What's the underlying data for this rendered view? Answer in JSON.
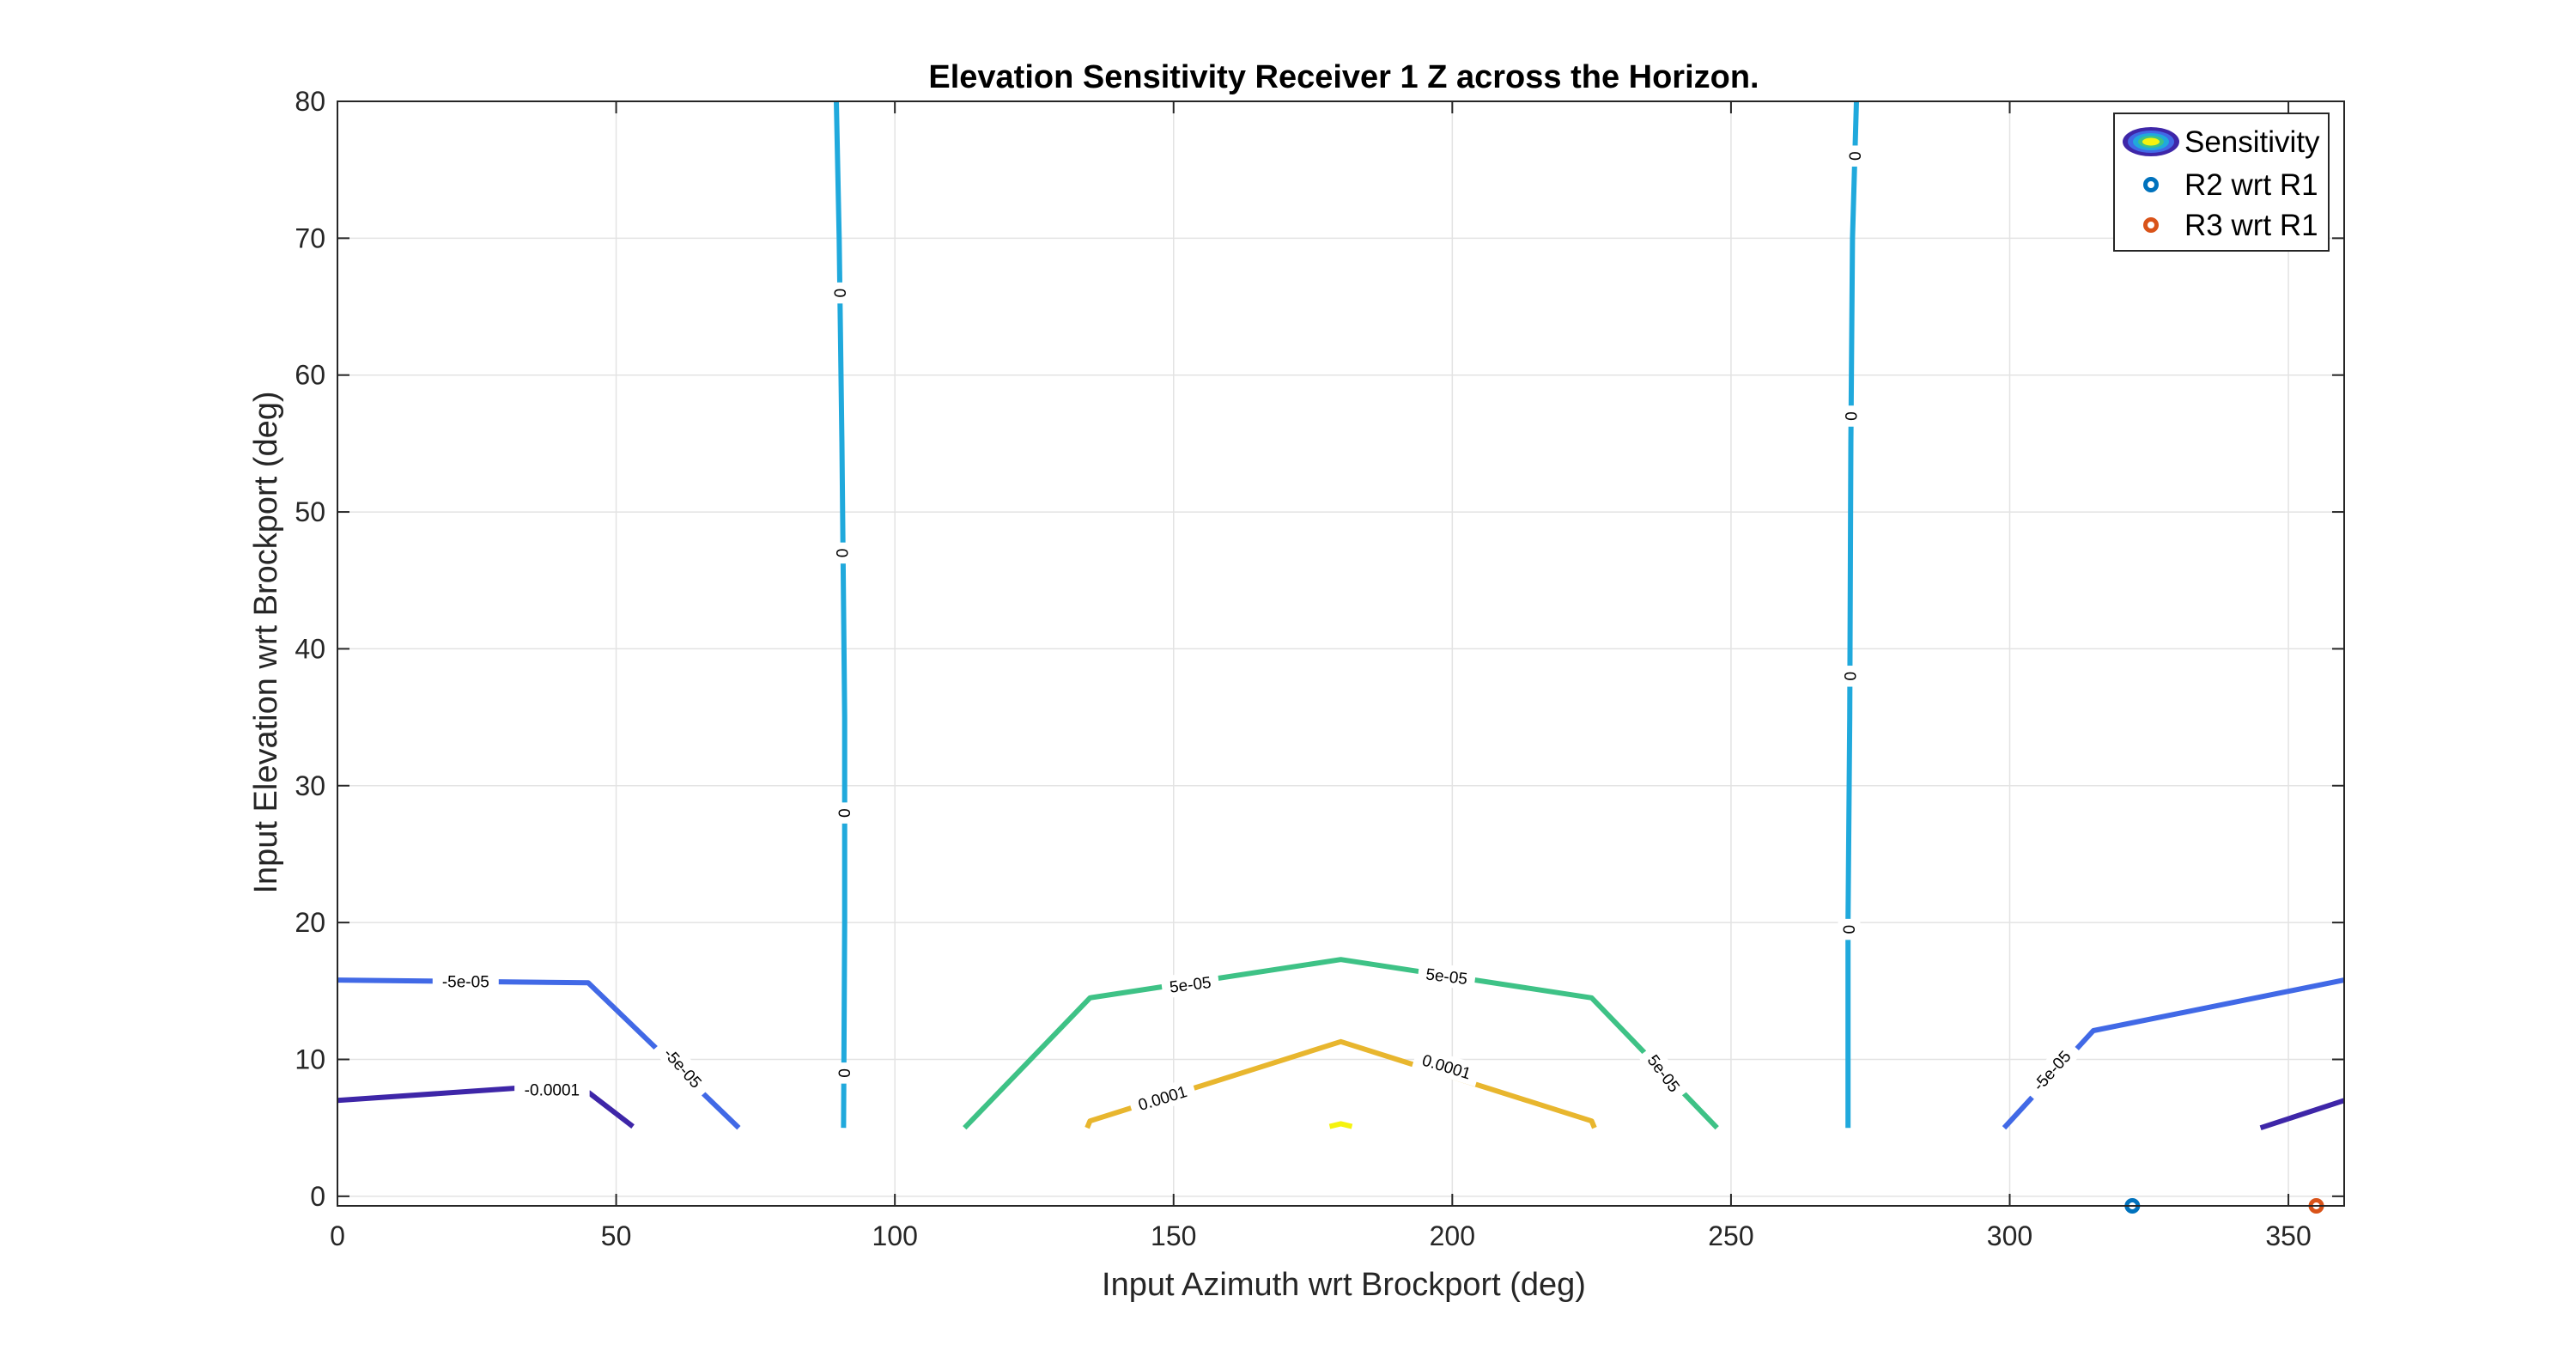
{
  "chart_data": {
    "type": "contour",
    "title": "Elevation Sensitivity Receiver 1 Z across the Horizon.",
    "xlabel": "Input Azimuth wrt Brockport (deg)",
    "ylabel": "Input Elevation wrt Brockport (deg)",
    "xlim": [
      0,
      360
    ],
    "ylim": [
      -0.7,
      80
    ],
    "xticks": [
      "0",
      "50",
      "100",
      "150",
      "200",
      "250",
      "300",
      "350"
    ],
    "xtick_values": [
      0,
      50,
      100,
      150,
      200,
      250,
      300,
      350
    ],
    "yticks": [
      "0",
      "10",
      "20",
      "30",
      "40",
      "50",
      "60",
      "70",
      "80"
    ],
    "ytick_values": [
      0,
      10,
      20,
      30,
      40,
      50,
      60,
      70,
      80
    ],
    "grid": true,
    "legend": {
      "placement": "top-right",
      "entries": [
        {
          "label": "Sensitivity",
          "marker": "contour-ellipse"
        },
        {
          "label": "R2 wrt R1",
          "marker": "circle",
          "color": "#0072BD"
        },
        {
          "label": "R3 wrt R1",
          "marker": "circle",
          "color": "#D95319"
        }
      ]
    },
    "contours": [
      {
        "level": "-0.0001",
        "color": "#3E26A8",
        "points": [
          [
            0,
            7
          ],
          [
            32,
            7.9
          ]
        ]
      },
      {
        "level": "-0.0001",
        "color": "#3E26A8",
        "points": [
          [
            45,
            7.6
          ],
          [
            53,
            5.1
          ]
        ]
      },
      {
        "level": "-0.0001",
        "color": "#3E26A8",
        "points": [
          [
            345,
            5
          ],
          [
            360,
            7
          ]
        ]
      },
      {
        "level": "-5e-05",
        "color": "#4169E6",
        "points": [
          [
            0,
            15.8
          ],
          [
            45,
            15.6
          ],
          [
            72,
            5
          ]
        ]
      },
      {
        "level": "-5e-05",
        "color": "#4169E6",
        "points": [
          [
            299,
            5
          ],
          [
            315,
            12.1
          ],
          [
            360,
            15.8
          ]
        ]
      },
      {
        "level": "0",
        "color": "#20A9DC",
        "points": [
          [
            89.5,
            80
          ],
          [
            90,
            70
          ],
          [
            90.5,
            55
          ],
          [
            91,
            35
          ],
          [
            91,
            20
          ],
          [
            90.8,
            5
          ]
        ]
      },
      {
        "level": "0",
        "color": "#20A9DC",
        "points": [
          [
            272.5,
            80
          ],
          [
            271.8,
            70
          ],
          [
            271.5,
            55
          ],
          [
            271.3,
            35
          ],
          [
            271,
            20
          ],
          [
            271,
            5
          ]
        ]
      },
      {
        "level": "5e-05",
        "color": "#3EC286",
        "points": [
          [
            112.5,
            5
          ],
          [
            135,
            14.5
          ],
          [
            180,
            17.3
          ],
          [
            225,
            14.5
          ],
          [
            247.5,
            5
          ]
        ]
      },
      {
        "level": "0.0001",
        "color": "#E8B62E",
        "points": [
          [
            134.5,
            5
          ],
          [
            135,
            5.5
          ],
          [
            180,
            11.3
          ],
          [
            225,
            5.5
          ],
          [
            225.5,
            5
          ]
        ]
      },
      {
        "level": "0.00015",
        "color": "#F5F30E",
        "points": [
          [
            178,
            5.1
          ],
          [
            180,
            5.3
          ],
          [
            182,
            5.1
          ]
        ]
      }
    ],
    "contour_labels": [
      {
        "text": "-5e-05",
        "x": 23,
        "y": 15.7,
        "angle": 0
      },
      {
        "text": "-0.0001",
        "x": 38.5,
        "y": 7.8,
        "angle": 0
      },
      {
        "text": "-5e-05",
        "x": 62,
        "y": 9.4,
        "angle": 48
      },
      {
        "text": "0",
        "x": 90.2,
        "y": 66,
        "angle": 90
      },
      {
        "text": "0",
        "x": 90.6,
        "y": 47,
        "angle": 90
      },
      {
        "text": "0",
        "x": 91,
        "y": 28,
        "angle": 90
      },
      {
        "text": "0",
        "x": 91,
        "y": 9,
        "angle": 90
      },
      {
        "text": "5e-05",
        "x": 153,
        "y": 15.5,
        "angle": -7
      },
      {
        "text": "5e-05",
        "x": 199,
        "y": 16.1,
        "angle": 7
      },
      {
        "text": "5e-05",
        "x": 238,
        "y": 9,
        "angle": 53
      },
      {
        "text": "0.0001",
        "x": 148,
        "y": 7.2,
        "angle": -17
      },
      {
        "text": "0.0001",
        "x": 199,
        "y": 9.5,
        "angle": 17
      },
      {
        "text": "0",
        "x": 272.3,
        "y": 76,
        "angle": 90
      },
      {
        "text": "0",
        "x": 271.6,
        "y": 57,
        "angle": 90
      },
      {
        "text": "0",
        "x": 271.4,
        "y": 38,
        "angle": 90
      },
      {
        "text": "0",
        "x": 271.2,
        "y": 19.5,
        "angle": 90
      },
      {
        "text": "-5e-05",
        "x": 307.5,
        "y": 9.2,
        "angle": -48
      }
    ],
    "scatter": [
      {
        "name": "R2 wrt R1",
        "color": "#0072BD",
        "x": 322,
        "y": -0.7
      },
      {
        "name": "R3 wrt R1",
        "color": "#D95319",
        "x": 355,
        "y": -0.7
      }
    ]
  }
}
